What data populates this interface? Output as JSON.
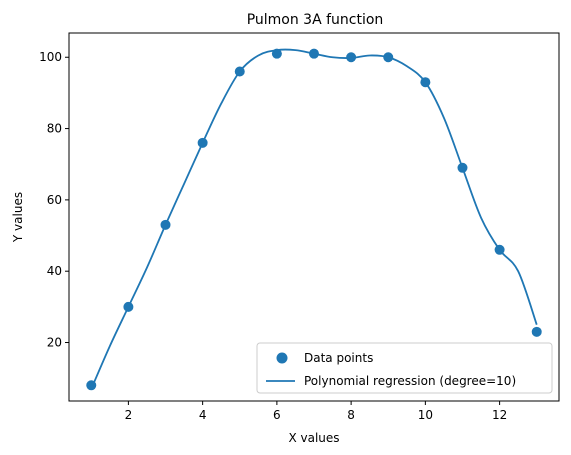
{
  "chart_data": {
    "type": "scatter",
    "title": "Pulmon 3A function",
    "xlabel": "X values",
    "ylabel": "Y values",
    "xlim": [
      0.4,
      13.6
    ],
    "ylim": [
      3.6,
      106.8
    ],
    "xticks": [
      2,
      4,
      6,
      8,
      10,
      12
    ],
    "yticks": [
      20,
      40,
      60,
      80,
      100
    ],
    "grid": false,
    "legend_position": "lower-right",
    "series": [
      {
        "name": "Data points",
        "kind": "scatter",
        "color": "#1f77b4",
        "x": [
          1,
          2,
          3,
          4,
          5,
          6,
          7,
          8,
          9,
          10,
          11,
          12,
          13
        ],
        "y": [
          8,
          30,
          53,
          76,
          96,
          101,
          101,
          100,
          100,
          93,
          69,
          46,
          23
        ]
      },
      {
        "name": "Polynomial regression (degree=10)",
        "kind": "line",
        "color": "#1f77b4",
        "x": [
          1,
          1.5,
          2,
          2.5,
          3,
          3.5,
          4,
          4.5,
          5,
          5.5,
          6,
          6.5,
          7,
          7.5,
          8,
          8.5,
          9,
          9.5,
          10,
          10.5,
          11,
          11.5,
          12,
          12.5,
          13
        ],
        "y": [
          7,
          19,
          30,
          41,
          53,
          64.5,
          76,
          87,
          96,
          100.5,
          102,
          102,
          101,
          100,
          99.8,
          100.5,
          100,
          97.5,
          93,
          83,
          69,
          55,
          46,
          40,
          25
        ]
      }
    ]
  }
}
